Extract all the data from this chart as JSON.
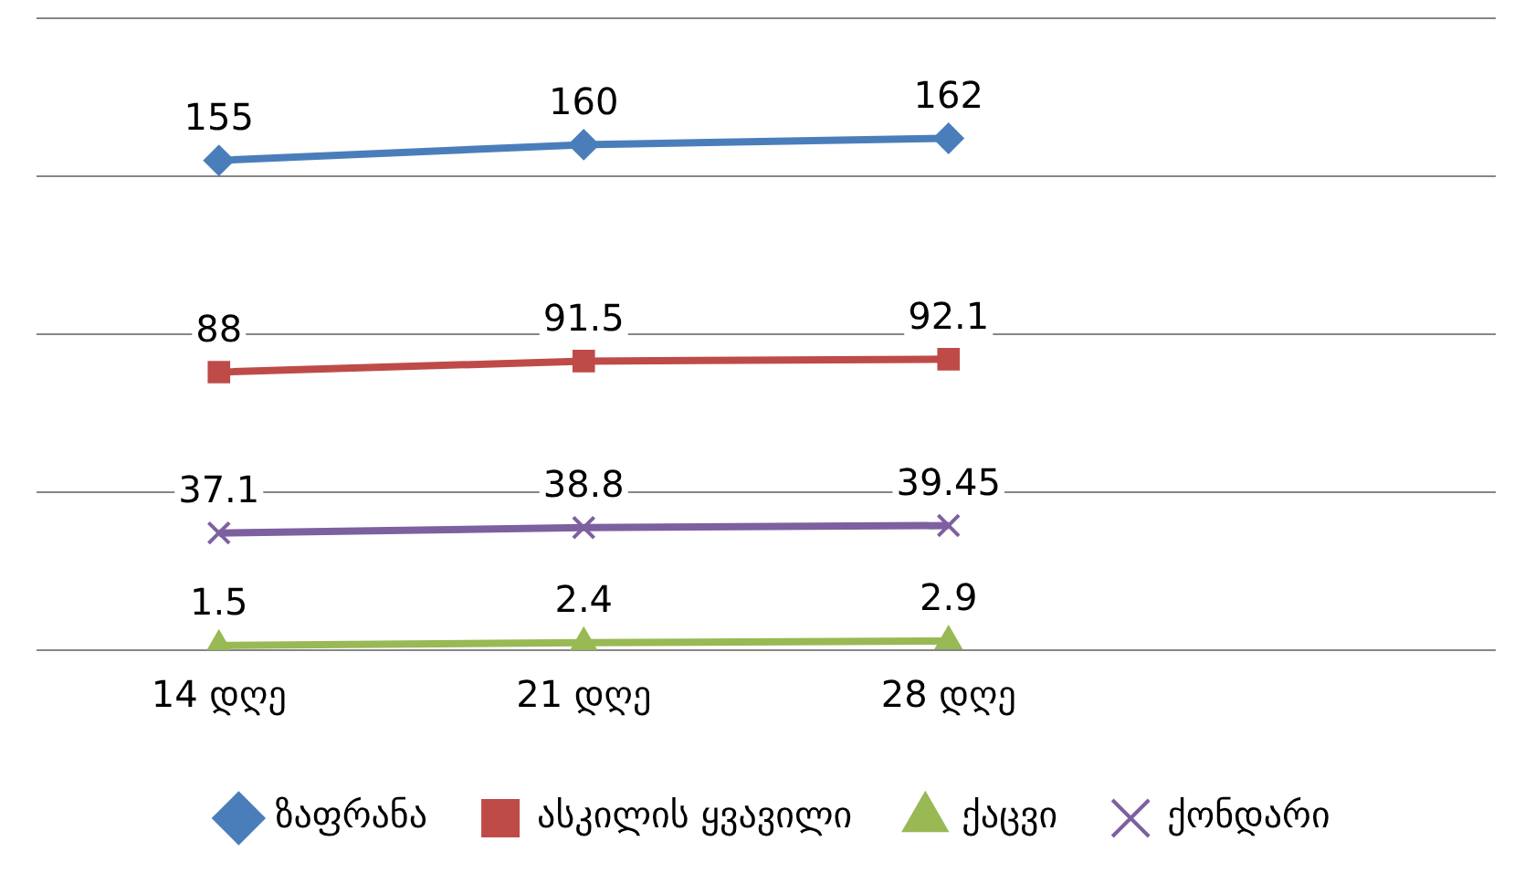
{
  "chart_data": {
    "type": "line",
    "categories": [
      "14 დღე",
      "21 დღე",
      "28 დღე",
      null
    ],
    "series": [
      {
        "name": "ზაფრანა",
        "color": "#4a7ebb",
        "marker": "diamond",
        "values": [
          155,
          160,
          162,
          null
        ]
      },
      {
        "name": "ასკილის ყვავილი",
        "color": "#be4b48",
        "marker": "square",
        "values": [
          88,
          91.5,
          92.1,
          null
        ]
      },
      {
        "name": "ქაცვი",
        "color": "#98b954",
        "marker": "triangle",
        "values": [
          1.5,
          2.4,
          2.9,
          null
        ]
      },
      {
        "name": "ქონდარი",
        "color": "#7d60a0",
        "marker": "cross",
        "values": [
          37.1,
          38.8,
          39.45,
          null
        ]
      }
    ],
    "ylim": [
      0,
      200
    ],
    "yticks": [
      0,
      50,
      100,
      150,
      200
    ],
    "tick_labels": "x",
    "grid": "y",
    "legend": "bottom",
    "data_labels": true
  }
}
